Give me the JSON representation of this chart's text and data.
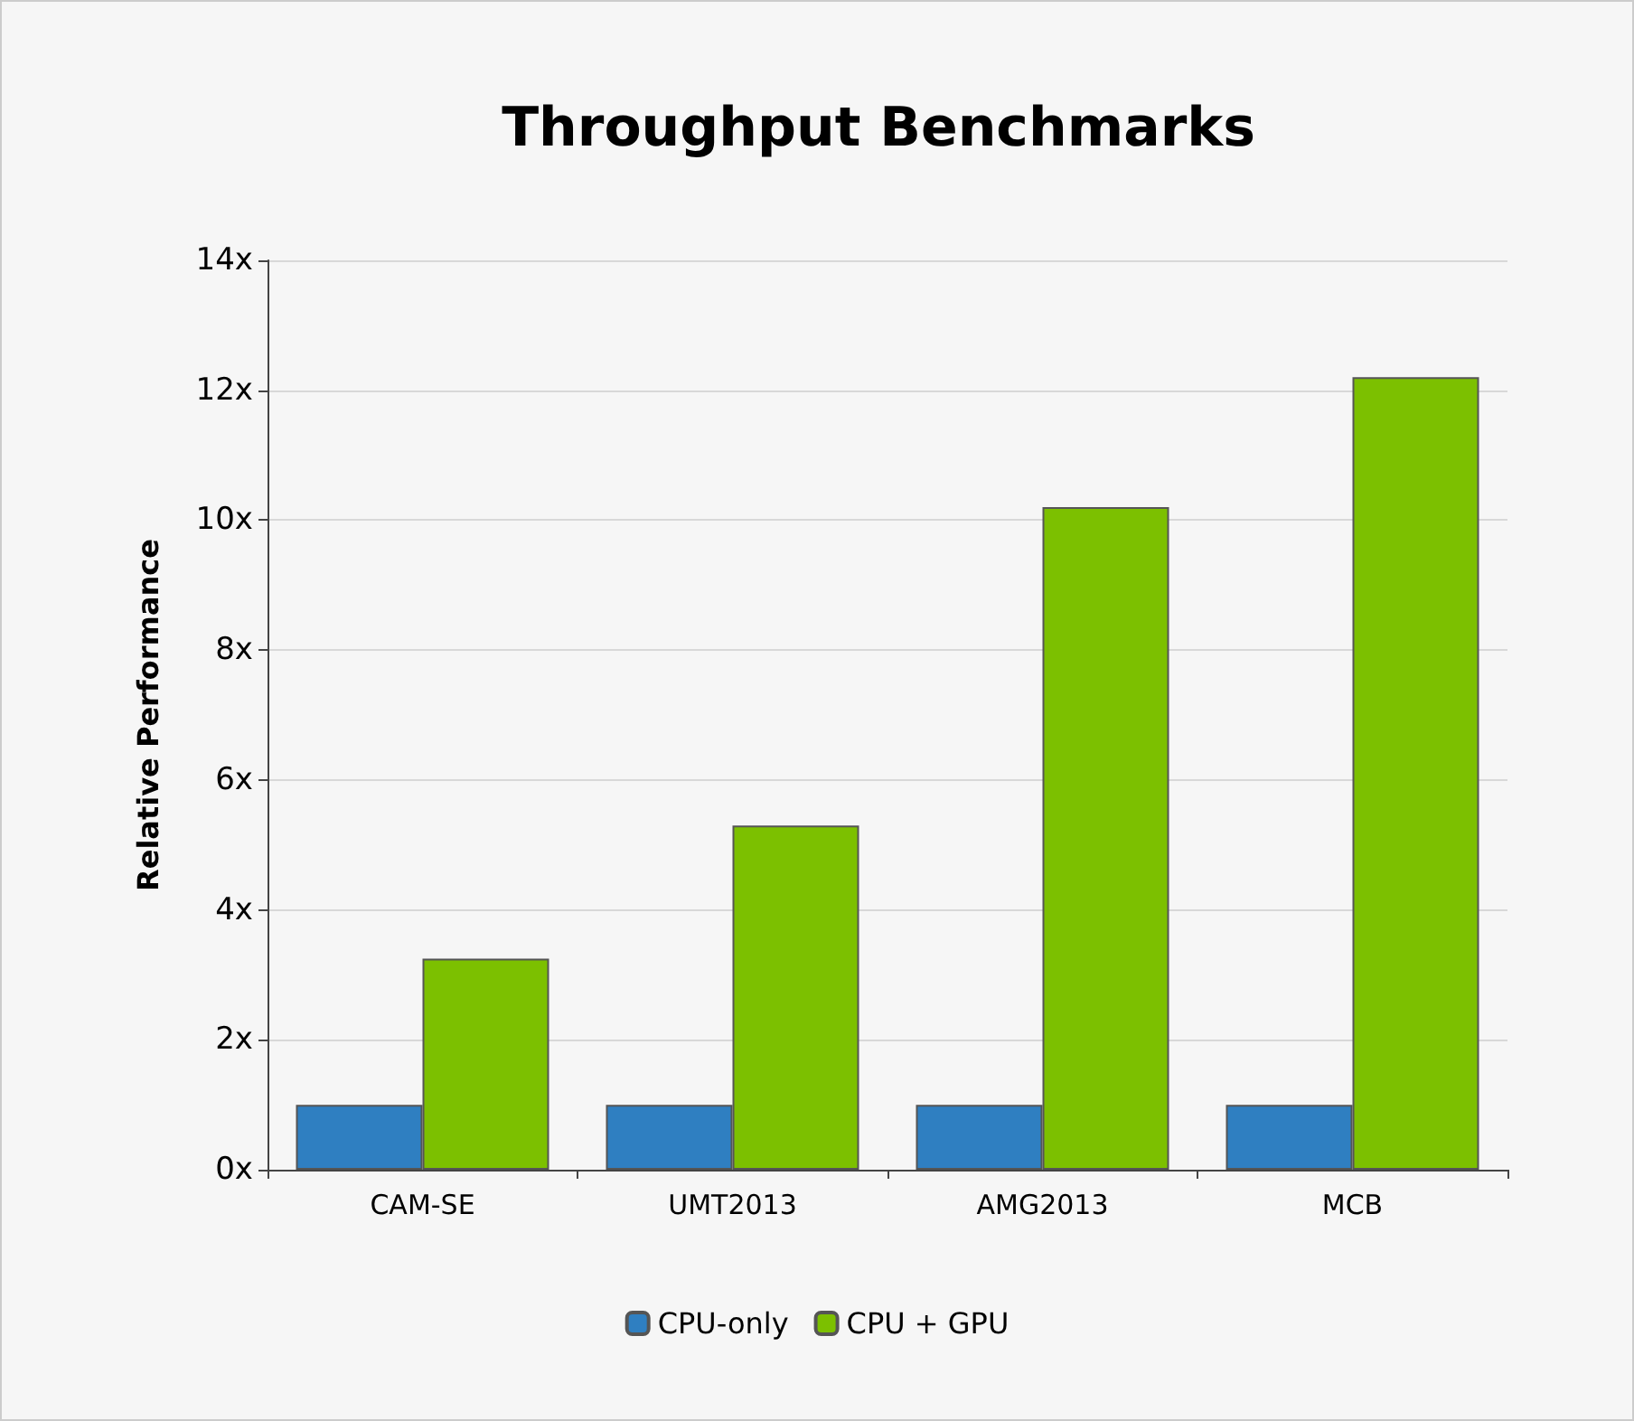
{
  "chart_data": {
    "type": "bar",
    "title": "Throughput Benchmarks",
    "ylabel": "Relative Performance",
    "categories": [
      "CAM-SE",
      "UMT2013",
      "AMG2013",
      "MCB"
    ],
    "series": [
      {
        "name": "CPU-only",
        "color": "#2f7fc1",
        "values": [
          1,
          1,
          1,
          1
        ]
      },
      {
        "name": "CPU + GPU",
        "color": "#7cc000",
        "values": [
          3.25,
          5.3,
          10.2,
          12.2
        ]
      }
    ],
    "ylim": [
      0,
      14
    ],
    "yticks": [
      {
        "value": 0,
        "label": "0x"
      },
      {
        "value": 2,
        "label": "2x"
      },
      {
        "value": 4,
        "label": "4x"
      },
      {
        "value": 6,
        "label": "6x"
      },
      {
        "value": 8,
        "label": "8x"
      },
      {
        "value": 10,
        "label": "10x"
      },
      {
        "value": 12,
        "label": "12x"
      },
      {
        "value": 14,
        "label": "14x"
      }
    ],
    "grid": "y",
    "legend": "bottom"
  }
}
